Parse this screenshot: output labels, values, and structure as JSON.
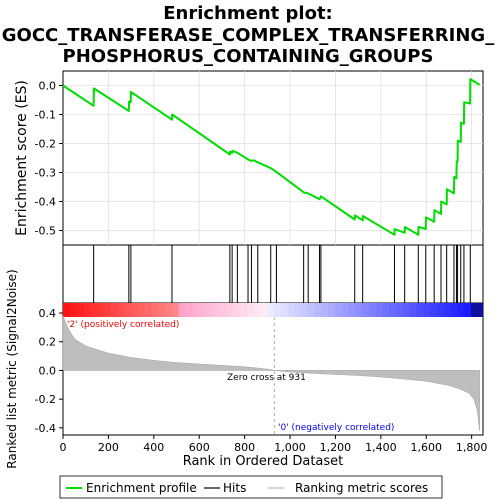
{
  "title_line1": "Enrichment plot:",
  "title_line2": "GOCC_TRANSFERASE_COMPLEX_TRANSFERRING_",
  "title_line3": "PHOSPHORUS_CONTAINING_GROUPS",
  "colors": {
    "profile": "#00dd00",
    "hits": "#000000",
    "metric_fill": "#bebebe",
    "pos_label": "#ff0000",
    "neg_label": "#0000ff",
    "zero_cross_line": "#c0c0c0"
  },
  "chart_data": {
    "type": "line",
    "x_range": [
      0,
      1850
    ],
    "x_ticks": [
      0,
      200,
      400,
      600,
      800,
      1000,
      1200,
      1400,
      1600,
      1800
    ],
    "x_tick_labels": [
      "0",
      "200",
      "400",
      "600",
      "800",
      "1,000",
      "1,200",
      "1,400",
      "1,600",
      "1,800"
    ],
    "xlabel": "Rank in Ordered Dataset",
    "es_panel": {
      "ylabel": "Enrichment score (ES)",
      "ylim": [
        -0.55,
        0.05
      ],
      "y_ticks": [
        0.0,
        -0.1,
        -0.2,
        -0.3,
        -0.4,
        -0.5
      ],
      "y_tick_labels": [
        "0.0",
        "-0.1",
        "-0.2",
        "-0.3",
        "-0.4",
        "-0.5"
      ],
      "profile": [
        [
          0,
          0.0
        ],
        [
          135,
          -0.07
        ],
        [
          136,
          -0.01
        ],
        [
          290,
          -0.088
        ],
        [
          291,
          -0.055
        ],
        [
          298,
          -0.058
        ],
        [
          299,
          -0.022
        ],
        [
          480,
          -0.118
        ],
        [
          481,
          -0.1
        ],
        [
          735,
          -0.238
        ],
        [
          736,
          -0.228
        ],
        [
          745,
          -0.232
        ],
        [
          746,
          -0.225
        ],
        [
          768,
          -0.232
        ],
        [
          815,
          -0.255
        ],
        [
          830,
          -0.26
        ],
        [
          840,
          -0.258
        ],
        [
          858,
          -0.265
        ],
        [
          915,
          -0.285
        ],
        [
          940,
          -0.298
        ],
        [
          1060,
          -0.368
        ],
        [
          1065,
          -0.37
        ],
        [
          1080,
          -0.372
        ],
        [
          1130,
          -0.392
        ],
        [
          1135,
          -0.385
        ],
        [
          1136,
          -0.382
        ],
        [
          1285,
          -0.462
        ],
        [
          1286,
          -0.448
        ],
        [
          1320,
          -0.465
        ],
        [
          1321,
          -0.45
        ],
        [
          1460,
          -0.515
        ],
        [
          1461,
          -0.495
        ],
        [
          1505,
          -0.508
        ],
        [
          1506,
          -0.488
        ],
        [
          1565,
          -0.515
        ],
        [
          1566,
          -0.488
        ],
        [
          1598,
          -0.495
        ],
        [
          1599,
          -0.455
        ],
        [
          1635,
          -0.47
        ],
        [
          1636,
          -0.43
        ],
        [
          1665,
          -0.443
        ],
        [
          1666,
          -0.4
        ],
        [
          1690,
          -0.41
        ],
        [
          1691,
          -0.358
        ],
        [
          1722,
          -0.372
        ],
        [
          1723,
          -0.315
        ],
        [
          1733,
          -0.32
        ],
        [
          1734,
          -0.262
        ],
        [
          1738,
          -0.262
        ],
        [
          1739,
          -0.19
        ],
        [
          1752,
          -0.195
        ],
        [
          1753,
          -0.128
        ],
        [
          1766,
          -0.132
        ],
        [
          1767,
          -0.058
        ],
        [
          1793,
          -0.062
        ],
        [
          1794,
          0.022
        ],
        [
          1835,
          0.002
        ]
      ]
    },
    "hits": [
      135,
      290,
      299,
      480,
      735,
      745,
      768,
      815,
      830,
      858,
      915,
      940,
      1060,
      1080,
      1130,
      1136,
      1285,
      1320,
      1460,
      1505,
      1565,
      1598,
      1635,
      1665,
      1690,
      1722,
      1733,
      1738,
      1752,
      1766,
      1794
    ],
    "metric_panel": {
      "ylabel": "Ranked list metric (Signal2Noise)",
      "ylim": [
        -0.45,
        0.47
      ],
      "y_ticks": [
        0.4,
        0.2,
        0.0,
        -0.2,
        -0.4
      ],
      "y_tick_labels": [
        "0.4",
        "0.2",
        "0.0",
        "-0.2",
        "-0.4"
      ],
      "curve": [
        [
          0,
          0.38
        ],
        [
          20,
          0.3
        ],
        [
          50,
          0.22
        ],
        [
          100,
          0.17
        ],
        [
          200,
          0.12
        ],
        [
          300,
          0.09
        ],
        [
          400,
          0.07
        ],
        [
          500,
          0.055
        ],
        [
          600,
          0.045
        ],
        [
          700,
          0.035
        ],
        [
          800,
          0.025
        ],
        [
          900,
          0.01
        ],
        [
          931,
          0.0
        ],
        [
          1000,
          -0.01
        ],
        [
          1100,
          -0.02
        ],
        [
          1200,
          -0.028
        ],
        [
          1300,
          -0.035
        ],
        [
          1400,
          -0.045
        ],
        [
          1500,
          -0.06
        ],
        [
          1600,
          -0.075
        ],
        [
          1650,
          -0.09
        ],
        [
          1700,
          -0.105
        ],
        [
          1750,
          -0.13
        ],
        [
          1790,
          -0.16
        ],
        [
          1810,
          -0.2
        ],
        [
          1825,
          -0.28
        ],
        [
          1835,
          -0.42
        ]
      ],
      "zero_cross_rank": 931,
      "zero_cross_label": "Zero cross at 931",
      "pos_label": "'2' (positively correlated)",
      "neg_label": "'0' (negatively correlated)"
    },
    "legend": {
      "placement": "bottom",
      "entries": [
        "Enrichment profile",
        "Hits",
        "Ranking metric scores"
      ]
    }
  }
}
